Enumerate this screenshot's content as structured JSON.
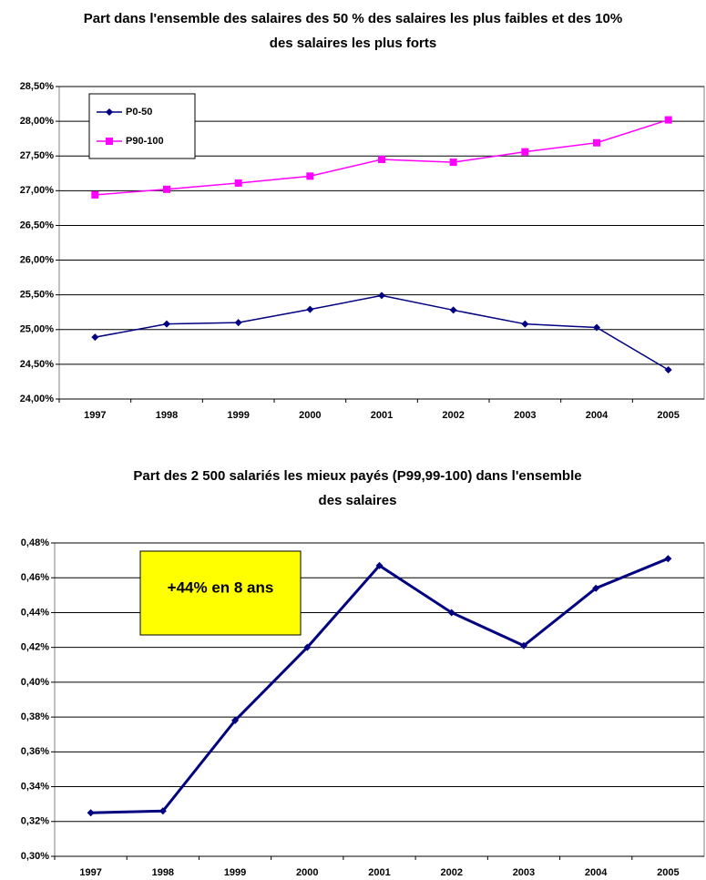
{
  "chart_data": [
    {
      "type": "line",
      "title": "Part dans l'ensemble des salaires des 50 % des salaires les plus faibles et des 10% des salaires les plus forts",
      "categories": [
        "1997",
        "1998",
        "1999",
        "2000",
        "2001",
        "2002",
        "2003",
        "2004",
        "2005"
      ],
      "series": [
        {
          "name": "P0-50",
          "color": "#000080",
          "marker": "diamond",
          "values": [
            24.89,
            25.08,
            25.1,
            25.29,
            25.49,
            25.28,
            25.08,
            25.03,
            24.42
          ]
        },
        {
          "name": "P90-100",
          "color": "#ff00ff",
          "marker": "square",
          "values": [
            26.94,
            27.02,
            27.11,
            27.21,
            27.45,
            27.41,
            27.56,
            27.69,
            28.02
          ]
        }
      ],
      "ylim": [
        24,
        28.5
      ],
      "yticks": [
        {
          "value": 24,
          "label": "24,00%"
        },
        {
          "value": 24.5,
          "label": "24,50%"
        },
        {
          "value": 25,
          "label": "25,00%"
        },
        {
          "value": 25.5,
          "label": "25,50%"
        },
        {
          "value": 26,
          "label": "26,00%"
        },
        {
          "value": 26.5,
          "label": "26,50%"
        },
        {
          "value": 27,
          "label": "27,00%"
        },
        {
          "value": 27.5,
          "label": "27,50%"
        },
        {
          "value": 28,
          "label": "28,00%"
        },
        {
          "value": 28.5,
          "label": "28,50%"
        }
      ],
      "grid": true,
      "legend": "upper left"
    },
    {
      "type": "line",
      "title": "Part des 2 500 salariés les mieux payés (P99,99-100) dans l'ensemble des salaires",
      "annotation": "+44% en 8 ans",
      "categories": [
        "1997",
        "1998",
        "1999",
        "2000",
        "2001",
        "2002",
        "2003",
        "2004",
        "2005"
      ],
      "series": [
        {
          "color": "#000080",
          "marker": "diamond",
          "values": [
            0.325,
            0.326,
            0.378,
            0.42,
            0.467,
            0.44,
            0.421,
            0.454,
            0.471
          ]
        }
      ],
      "ylim": [
        0.3,
        0.48
      ],
      "yticks": [
        {
          "value": 0.3,
          "label": "0,30%"
        },
        {
          "value": 0.32,
          "label": "0,32%"
        },
        {
          "value": 0.34,
          "label": "0,34%"
        },
        {
          "value": 0.36,
          "label": "0,36%"
        },
        {
          "value": 0.38,
          "label": "0,38%"
        },
        {
          "value": 0.4,
          "label": "0,40%"
        },
        {
          "value": 0.42,
          "label": "0,42%"
        },
        {
          "value": 0.44,
          "label": "0,44%"
        },
        {
          "value": 0.46,
          "label": "0,46%"
        },
        {
          "value": 0.48,
          "label": "0,48%"
        }
      ],
      "grid": true
    }
  ]
}
